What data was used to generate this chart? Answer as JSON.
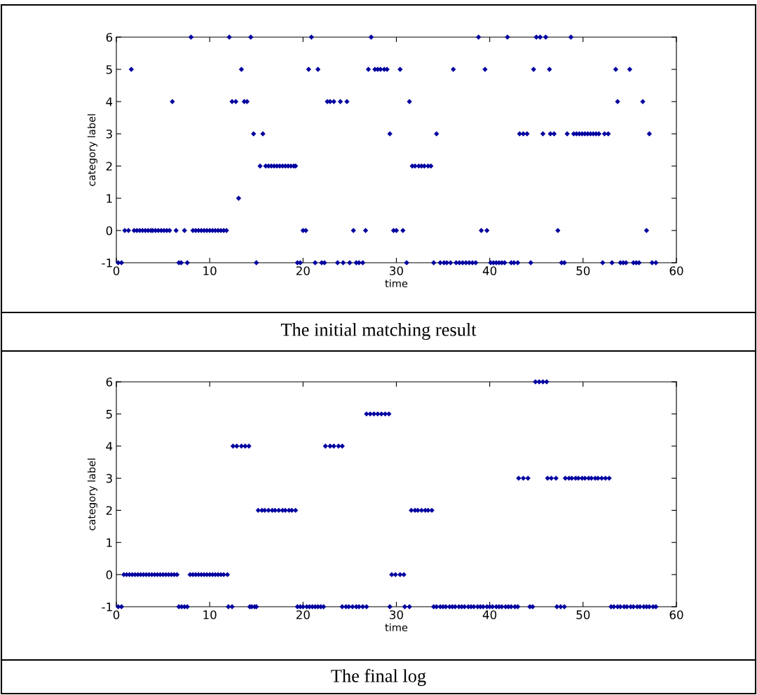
{
  "chart_data": [
    {
      "type": "scatter",
      "xlabel": "time",
      "ylabel": "category label",
      "color": "#0000a0",
      "marker": "diamond",
      "grid": false,
      "xlim": [
        0,
        60
      ],
      "ylim": [
        -1,
        6
      ],
      "xticks": [
        0,
        10,
        20,
        30,
        40,
        50,
        60
      ],
      "yticks": [
        -1,
        0,
        1,
        2,
        3,
        4,
        5,
        6
      ],
      "annotations": [
        "The initial matching result"
      ],
      "x": [
        0.2,
        0.55,
        6.7,
        6.95,
        7.6,
        15.0,
        19.4,
        19.7,
        21.3,
        22.0,
        22.3,
        23.7,
        24.3,
        25.0,
        25.7,
        26.0,
        26.4,
        31.1,
        34.0,
        34.7,
        35.1,
        35.4,
        35.8,
        36.4,
        36.75,
        37.1,
        37.45,
        37.8,
        38.15,
        38.5,
        40.1,
        40.4,
        40.7,
        41.0,
        41.3,
        41.6,
        42.3,
        42.6,
        43.0,
        44.4,
        47.7,
        48.0,
        52.1,
        53.1,
        54.0,
        54.3,
        54.6,
        55.4,
        55.7,
        56.0,
        57.4,
        57.8,
        0.9,
        1.3,
        1.9,
        2.2,
        2.5,
        2.8,
        3.1,
        3.4,
        3.7,
        3.9,
        4.2,
        4.5,
        4.8,
        5.1,
        5.4,
        5.7,
        6.4,
        7.3,
        8.2,
        8.5,
        8.8,
        9.1,
        9.4,
        9.7,
        10.0,
        10.3,
        10.6,
        10.9,
        11.2,
        11.5,
        11.8,
        20.0,
        20.3,
        25.4,
        26.7,
        29.7,
        30.0,
        30.7,
        39.1,
        39.7,
        47.3,
        56.8,
        13.1,
        15.4,
        16.0,
        16.3,
        16.6,
        16.9,
        17.2,
        17.5,
        17.8,
        18.1,
        18.4,
        18.7,
        19.0,
        19.2,
        31.7,
        32.0,
        32.4,
        32.7,
        33.0,
        33.4,
        33.7,
        14.7,
        15.7,
        29.3,
        34.3,
        43.2,
        43.6,
        44.0,
        45.7,
        46.5,
        46.9,
        48.3,
        49.0,
        49.3,
        49.6,
        49.9,
        50.2,
        50.5,
        50.8,
        51.1,
        51.4,
        51.7,
        52.3,
        52.7,
        57.1,
        6.0,
        12.4,
        12.8,
        13.7,
        14.0,
        22.6,
        22.9,
        23.3,
        24.0,
        24.7,
        31.4,
        53.7,
        56.4,
        1.6,
        13.4,
        20.6,
        21.6,
        27.0,
        27.7,
        28.0,
        28.3,
        28.7,
        29.0,
        30.4,
        36.1,
        39.5,
        44.7,
        46.4,
        53.5,
        55.0,
        8.0,
        12.1,
        14.4,
        20.9,
        27.3,
        38.8,
        41.9,
        45.0,
        45.4,
        46.0,
        48.7
      ],
      "values": [
        -1,
        -1,
        -1,
        -1,
        -1,
        -1,
        -1,
        -1,
        -1,
        -1,
        -1,
        -1,
        -1,
        -1,
        -1,
        -1,
        -1,
        -1,
        -1,
        -1,
        -1,
        -1,
        -1,
        -1,
        -1,
        -1,
        -1,
        -1,
        -1,
        -1,
        -1,
        -1,
        -1,
        -1,
        -1,
        -1,
        -1,
        -1,
        -1,
        -1,
        -1,
        -1,
        -1,
        -1,
        -1,
        -1,
        -1,
        -1,
        -1,
        -1,
        -1,
        -1,
        0,
        0,
        0,
        0,
        0,
        0,
        0,
        0,
        0,
        0,
        0,
        0,
        0,
        0,
        0,
        0,
        0,
        0,
        0,
        0,
        0,
        0,
        0,
        0,
        0,
        0,
        0,
        0,
        0,
        0,
        0,
        0,
        0,
        0,
        0,
        0,
        0,
        0,
        0,
        0,
        0,
        0,
        1,
        2,
        2,
        2,
        2,
        2,
        2,
        2,
        2,
        2,
        2,
        2,
        2,
        2,
        2,
        2,
        2,
        2,
        2,
        2,
        2,
        3,
        3,
        3,
        3,
        3,
        3,
        3,
        3,
        3,
        3,
        3,
        3,
        3,
        3,
        3,
        3,
        3,
        3,
        3,
        3,
        3,
        3,
        3,
        3,
        4,
        4,
        4,
        4,
        4,
        4,
        4,
        4,
        4,
        4,
        4,
        4,
        4,
        5,
        5,
        5,
        5,
        5,
        5,
        5,
        5,
        5,
        5,
        5,
        5,
        5,
        5,
        5,
        5,
        5,
        6,
        6,
        6,
        6,
        6,
        6,
        6,
        6,
        6,
        6,
        6
      ]
    },
    {
      "type": "scatter",
      "xlabel": "time",
      "ylabel": "category label",
      "color": "#0000a0",
      "marker": "diamond",
      "grid": false,
      "xlim": [
        0,
        60
      ],
      "ylim": [
        -1,
        6
      ],
      "xticks": [
        0,
        10,
        20,
        30,
        40,
        50,
        60
      ],
      "yticks": [
        -1,
        0,
        1,
        2,
        3,
        4,
        5,
        6
      ],
      "annotations": [
        "The final log"
      ],
      "x": [
        0.2,
        0.55,
        6.7,
        7.0,
        7.3,
        7.6,
        12.0,
        12.4,
        14.3,
        14.5,
        14.8,
        15.0,
        19.4,
        19.7,
        20.0,
        20.4,
        20.7,
        21.0,
        21.3,
        21.6,
        21.9,
        22.2,
        24.2,
        24.6,
        24.9,
        25.3,
        25.7,
        26.0,
        26.4,
        26.8,
        29.3,
        30.9,
        31.4,
        34.0,
        34.3,
        34.7,
        35.0,
        35.3,
        35.7,
        36.0,
        36.3,
        36.7,
        37.0,
        37.3,
        37.7,
        38.0,
        38.3,
        38.7,
        39.0,
        39.3,
        39.7,
        40.0,
        40.3,
        40.7,
        41.0,
        41.3,
        41.7,
        42.0,
        42.3,
        42.7,
        43.0,
        44.3,
        44.6,
        47.2,
        47.6,
        48.0,
        53.0,
        53.3,
        53.7,
        54.0,
        54.4,
        54.7,
        55.1,
        55.4,
        55.8,
        56.1,
        56.5,
        56.8,
        57.1,
        57.5,
        57.8,
        0.8,
        1.1,
        1.4,
        1.7,
        2.0,
        2.3,
        2.6,
        2.9,
        3.2,
        3.5,
        3.8,
        4.1,
        4.4,
        4.7,
        5.0,
        5.3,
        5.6,
        5.9,
        6.2,
        6.5,
        7.9,
        8.2,
        8.5,
        8.8,
        9.1,
        9.4,
        9.7,
        10.0,
        10.3,
        10.6,
        10.9,
        11.2,
        11.5,
        11.9,
        29.5,
        29.9,
        30.4,
        30.8,
        15.2,
        15.6,
        15.9,
        16.3,
        16.7,
        17.0,
        17.4,
        17.8,
        18.1,
        18.5,
        18.8,
        19.2,
        31.6,
        32.0,
        32.3,
        32.7,
        33.1,
        33.4,
        33.8,
        43.1,
        43.6,
        44.1,
        46.2,
        46.6,
        47.1,
        48.1,
        48.5,
        48.8,
        49.2,
        49.5,
        49.9,
        50.2,
        50.6,
        50.9,
        51.3,
        51.6,
        52.0,
        52.4,
        52.8,
        12.5,
        12.9,
        13.4,
        13.8,
        14.2,
        22.4,
        22.9,
        23.3,
        23.8,
        24.2,
        26.8,
        27.2,
        27.6,
        28.0,
        28.4,
        28.8,
        29.2,
        44.9,
        45.3,
        45.7,
        46.1
      ],
      "values": [
        -1,
        -1,
        -1,
        -1,
        -1,
        -1,
        -1,
        -1,
        -1,
        -1,
        -1,
        -1,
        -1,
        -1,
        -1,
        -1,
        -1,
        -1,
        -1,
        -1,
        -1,
        -1,
        -1,
        -1,
        -1,
        -1,
        -1,
        -1,
        -1,
        -1,
        -1,
        -1,
        -1,
        -1,
        -1,
        -1,
        -1,
        -1,
        -1,
        -1,
        -1,
        -1,
        -1,
        -1,
        -1,
        -1,
        -1,
        -1,
        -1,
        -1,
        -1,
        -1,
        -1,
        -1,
        -1,
        -1,
        -1,
        -1,
        -1,
        -1,
        -1,
        -1,
        -1,
        -1,
        -1,
        -1,
        -1,
        -1,
        -1,
        -1,
        -1,
        -1,
        -1,
        -1,
        -1,
        -1,
        -1,
        -1,
        -1,
        -1,
        -1,
        0,
        0,
        0,
        0,
        0,
        0,
        0,
        0,
        0,
        0,
        0,
        0,
        0,
        0,
        0,
        0,
        0,
        0,
        0,
        0,
        0,
        0,
        0,
        0,
        0,
        0,
        0,
        0,
        0,
        0,
        0,
        0,
        0,
        0,
        0,
        0,
        0,
        0,
        2,
        2,
        2,
        2,
        2,
        2,
        2,
        2,
        2,
        2,
        2,
        2,
        2,
        2,
        2,
        2,
        2,
        2,
        2,
        3,
        3,
        3,
        3,
        3,
        3,
        3,
        3,
        3,
        3,
        3,
        3,
        3,
        3,
        3,
        3,
        3,
        3,
        3,
        3,
        4,
        4,
        4,
        4,
        4,
        4,
        4,
        4,
        4,
        4,
        5,
        5,
        5,
        5,
        5,
        5,
        5,
        6,
        6,
        6,
        6
      ]
    }
  ]
}
